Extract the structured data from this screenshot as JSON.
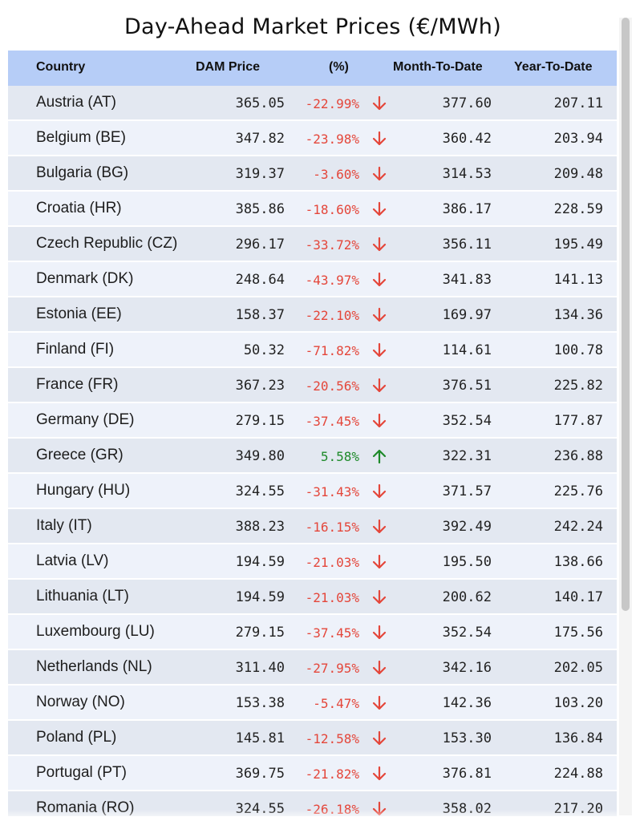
{
  "title": "Day-Ahead Market Prices (€/MWh)",
  "columns": {
    "country": "Country",
    "price": "DAM Price",
    "pct": "(%)",
    "mtd": "Month-To-Date",
    "ytd": "Year-To-Date"
  },
  "colors": {
    "header_bg": "#b6cdf7",
    "row_even": "#e3e8f1",
    "row_odd": "#eef2fa",
    "down": "#e4463a",
    "up": "#1e8a2a"
  },
  "rows": [
    {
      "country": "Austria (AT)",
      "price": "365.05",
      "pct": "-22.99%",
      "dir": "down",
      "mtd": "377.60",
      "ytd": "207.11"
    },
    {
      "country": "Belgium (BE)",
      "price": "347.82",
      "pct": "-23.98%",
      "dir": "down",
      "mtd": "360.42",
      "ytd": "203.94"
    },
    {
      "country": "Bulgaria (BG)",
      "price": "319.37",
      "pct": "-3.60%",
      "dir": "down",
      "mtd": "314.53",
      "ytd": "209.48"
    },
    {
      "country": "Croatia (HR)",
      "price": "385.86",
      "pct": "-18.60%",
      "dir": "down",
      "mtd": "386.17",
      "ytd": "228.59"
    },
    {
      "country": "Czech Republic (CZ)",
      "price": "296.17",
      "pct": "-33.72%",
      "dir": "down",
      "mtd": "356.11",
      "ytd": "195.49"
    },
    {
      "country": "Denmark (DK)",
      "price": "248.64",
      "pct": "-43.97%",
      "dir": "down",
      "mtd": "341.83",
      "ytd": "141.13"
    },
    {
      "country": "Estonia (EE)",
      "price": "158.37",
      "pct": "-22.10%",
      "dir": "down",
      "mtd": "169.97",
      "ytd": "134.36"
    },
    {
      "country": "Finland (FI)",
      "price": "50.32",
      "pct": "-71.82%",
      "dir": "down",
      "mtd": "114.61",
      "ytd": "100.78"
    },
    {
      "country": "France (FR)",
      "price": "367.23",
      "pct": "-20.56%",
      "dir": "down",
      "mtd": "376.51",
      "ytd": "225.82"
    },
    {
      "country": "Germany (DE)",
      "price": "279.15",
      "pct": "-37.45%",
      "dir": "down",
      "mtd": "352.54",
      "ytd": "177.87"
    },
    {
      "country": "Greece (GR)",
      "price": "349.80",
      "pct": "5.58%",
      "dir": "up",
      "mtd": "322.31",
      "ytd": "236.88"
    },
    {
      "country": "Hungary (HU)",
      "price": "324.55",
      "pct": "-31.43%",
      "dir": "down",
      "mtd": "371.57",
      "ytd": "225.76"
    },
    {
      "country": "Italy (IT)",
      "price": "388.23",
      "pct": "-16.15%",
      "dir": "down",
      "mtd": "392.49",
      "ytd": "242.24"
    },
    {
      "country": "Latvia (LV)",
      "price": "194.59",
      "pct": "-21.03%",
      "dir": "down",
      "mtd": "195.50",
      "ytd": "138.66"
    },
    {
      "country": "Lithuania (LT)",
      "price": "194.59",
      "pct": "-21.03%",
      "dir": "down",
      "mtd": "200.62",
      "ytd": "140.17"
    },
    {
      "country": "Luxembourg (LU)",
      "price": "279.15",
      "pct": "-37.45%",
      "dir": "down",
      "mtd": "352.54",
      "ytd": "175.56"
    },
    {
      "country": "Netherlands (NL)",
      "price": "311.40",
      "pct": "-27.95%",
      "dir": "down",
      "mtd": "342.16",
      "ytd": "202.05"
    },
    {
      "country": "Norway (NO)",
      "price": "153.38",
      "pct": "-5.47%",
      "dir": "down",
      "mtd": "142.36",
      "ytd": "103.20"
    },
    {
      "country": "Poland (PL)",
      "price": "145.81",
      "pct": "-12.58%",
      "dir": "down",
      "mtd": "153.30",
      "ytd": "136.84"
    },
    {
      "country": "Portugal (PT)",
      "price": "369.75",
      "pct": "-21.82%",
      "dir": "down",
      "mtd": "376.81",
      "ytd": "224.88"
    },
    {
      "country": "Romania (RO)",
      "price": "324.55",
      "pct": "-26.18%",
      "dir": "down",
      "mtd": "358.02",
      "ytd": "217.20"
    }
  ]
}
